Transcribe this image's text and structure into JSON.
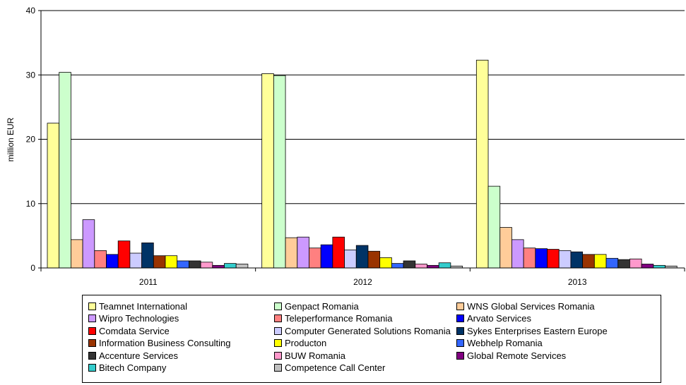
{
  "chart_data": {
    "type": "bar",
    "ylabel": "million EUR",
    "ylim": [
      0,
      40
    ],
    "yticks": [
      0,
      10,
      20,
      30,
      40
    ],
    "grid": true,
    "legend_position": "bottom",
    "categories": [
      "2011",
      "2012",
      "2013"
    ],
    "series": [
      {
        "name": "Teamnet International",
        "color": "#FFFF99",
        "values": [
          22.5,
          30.2,
          32.3
        ]
      },
      {
        "name": "Genpact Romania",
        "color": "#CCFFCC",
        "values": [
          30.4,
          29.9,
          12.7
        ]
      },
      {
        "name": "WNS Global Services Romania",
        "color": "#FFCC99",
        "values": [
          4.4,
          4.7,
          6.3
        ]
      },
      {
        "name": "Wipro Technologies",
        "color": "#CC99FF",
        "values": [
          7.5,
          4.8,
          4.4
        ]
      },
      {
        "name": "Teleperformance Romania",
        "color": "#FF8080",
        "values": [
          2.7,
          3.1,
          3.1
        ]
      },
      {
        "name": "Arvato Services",
        "color": "#0000FF",
        "values": [
          2.1,
          3.6,
          3.0
        ]
      },
      {
        "name": "Comdata Service",
        "color": "#FF0000",
        "values": [
          4.2,
          4.8,
          2.9
        ]
      },
      {
        "name": "Computer Generated Solutions Romania",
        "color": "#CCCCFF",
        "values": [
          2.3,
          2.8,
          2.7
        ]
      },
      {
        "name": "Sykes Enterprises Eastern Europe",
        "color": "#003366",
        "values": [
          3.9,
          3.5,
          2.5
        ]
      },
      {
        "name": "Information Business Consulting",
        "color": "#993300",
        "values": [
          1.9,
          2.6,
          2.1
        ]
      },
      {
        "name": "Producton",
        "color": "#FFFF00",
        "values": [
          1.9,
          1.6,
          2.1
        ]
      },
      {
        "name": "Webhelp Romania",
        "color": "#3366FF",
        "values": [
          1.1,
          0.7,
          1.5
        ]
      },
      {
        "name": "Accenture Services",
        "color": "#333333",
        "values": [
          1.1,
          1.1,
          1.3
        ]
      },
      {
        "name": "BUW Romania",
        "color": "#FF99CC",
        "values": [
          0.9,
          0.6,
          1.4
        ]
      },
      {
        "name": "Global Remote Services",
        "color": "#800080",
        "values": [
          0.4,
          0.4,
          0.6
        ]
      },
      {
        "name": "Bitech Company",
        "color": "#33CCCC",
        "values": [
          0.7,
          0.8,
          0.4
        ]
      },
      {
        "name": "Competence Call Center",
        "color": "#C0C0C0",
        "values": [
          0.6,
          0.3,
          0.3
        ]
      }
    ]
  }
}
